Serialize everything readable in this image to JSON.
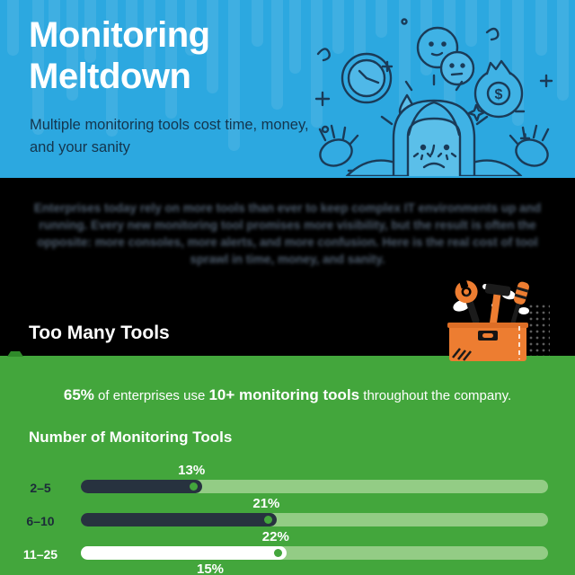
{
  "header": {
    "title_line1": "Monitoring",
    "title_line2": "Meltdown",
    "subtitle": "Multiple monitoring tools cost time, money, and your sanity",
    "bg_color": "#2CA8E0",
    "title_color": "#FFFFFF",
    "subtitle_color": "#14354D",
    "illustration": "stressed-person-with-clock-smileys-and-money-bag"
  },
  "intro": {
    "bg_color": "#000000",
    "text_color": "#4E5D6E",
    "paragraph": "Enterprises today rely on more tools than ever to keep complex IT environments up and running. Every new monitoring tool promises more visibility, but the result is often the opposite: more consoles, more alerts, and more confusion. Here is the real cost of tool sprawl in time, money, and sanity."
  },
  "section": {
    "heading": "Too Many Tools",
    "illustration": "orange-toolbox-with-tools",
    "accent_orange": "#ED7D31"
  },
  "stats": {
    "headline": {
      "parts": [
        {
          "text": "65%",
          "bold": true
        },
        {
          "text": " of enterprises use ",
          "bold": false
        },
        {
          "text": "10+ monitoring tools",
          "bold": true
        },
        {
          "text": " throughout the company.",
          "bold": false
        }
      ]
    }
  },
  "chart_data": {
    "type": "bar",
    "orientation": "horizontal",
    "title": "Number of Monitoring Tools",
    "categories": [
      "2–5",
      "6–10",
      "11–25",
      ""
    ],
    "values": [
      13,
      21,
      22,
      15
    ],
    "value_labels": [
      "13%",
      "21%",
      "22%",
      "15%"
    ],
    "highlight_index": 2,
    "axis_max_percent": 50,
    "legend": "none",
    "grid": "off",
    "bar_color": "#27323F",
    "highlight_bar_color": "#FFFFFF",
    "track_color": "#93CC85",
    "dot_color": "#43A63C",
    "background_color": "#43A63C",
    "rows": [
      {
        "label": "2–5",
        "value": 13,
        "value_label": "13%",
        "highlight": false
      },
      {
        "label": "6–10",
        "value": 21,
        "value_label": "21%",
        "highlight": false
      },
      {
        "label": "11–25",
        "value": 22,
        "value_label": "22%",
        "highlight": true
      },
      {
        "label": "",
        "value": 15,
        "value_label": "15%",
        "highlight": false
      }
    ]
  }
}
